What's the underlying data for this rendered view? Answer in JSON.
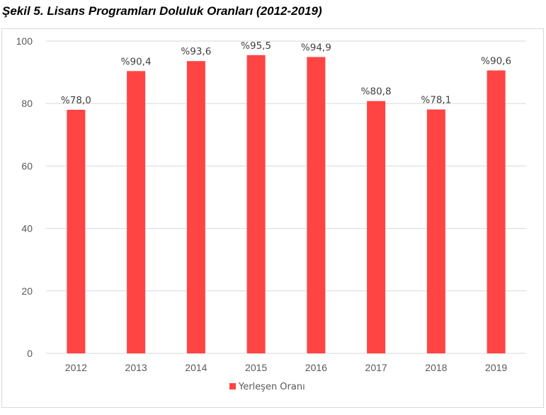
{
  "figure": {
    "title": "Şekil 5. Lisans Programları Doluluk Oranları (2012-2019)"
  },
  "chart_data": {
    "type": "bar",
    "title": "Şekil 5. Lisans Programları Doluluk Oranları (2012-2019)",
    "categories": [
      "2012",
      "2013",
      "2014",
      "2015",
      "2016",
      "2017",
      "2018",
      "2019"
    ],
    "series": [
      {
        "name": "Yerleşen Oranı",
        "color": "#ff4444",
        "values": [
          78.0,
          90.4,
          93.6,
          95.5,
          94.9,
          80.8,
          78.1,
          90.6
        ],
        "labels": [
          "%78,0",
          "%90,4",
          "%93,6",
          "%95,5",
          "%94,9",
          "%80,8",
          "%78,1",
          "%90,6"
        ]
      }
    ],
    "yticks": [
      "0",
      "20",
      "40",
      "60",
      "80",
      "100"
    ],
    "ylim": [
      0,
      100
    ],
    "xlabel": "",
    "ylabel": "",
    "grid": true,
    "legend": "bottom-center"
  }
}
